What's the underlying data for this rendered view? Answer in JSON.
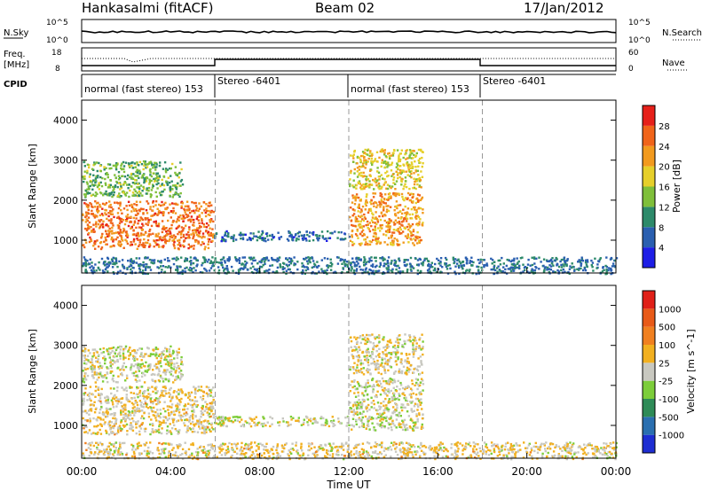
{
  "header": {
    "station": "Hankasalmi (fitACF)",
    "beam": "Beam 02",
    "date": "17/Jan/2012"
  },
  "noise_panel": {
    "label": "N.Sky",
    "tick_top": "10^5",
    "tick_bottom": "10^0",
    "right_tick_top": "10^5",
    "right_tick_bottom": "10^0",
    "right_label": "N.Search"
  },
  "freq_panel": {
    "label_line1": "Freq.",
    "label_line2": "[MHz]",
    "tick_top": "18",
    "tick_bottom": "8",
    "right_tick_top": "60",
    "right_tick_bottom": "0",
    "right_label": "Nave"
  },
  "cpid": {
    "label": "CPID",
    "segments": [
      {
        "start_hour": 0,
        "text": "normal (fast stereo) 153"
      },
      {
        "start_hour": 6,
        "text": "Stereo -6401"
      },
      {
        "start_hour": 12,
        "text": "normal (fast stereo) 153"
      },
      {
        "start_hour": 18,
        "text": "Stereo -6401"
      }
    ]
  },
  "x_axis": {
    "label": "Time UT",
    "ticks": [
      "00:00",
      "04:00",
      "08:00",
      "12:00",
      "16:00",
      "20:00",
      "00:00"
    ],
    "range_hours": [
      0,
      24
    ]
  },
  "colors": {
    "power_scale": [
      "#1e1ee6",
      "#2a5fb0",
      "#2d8a6a",
      "#7fbf3a",
      "#e6cf2a",
      "#f29a1e",
      "#f0641a",
      "#e6201a"
    ],
    "velocity_scale": [
      "#1e2ed2",
      "#2a6fb0",
      "#2e8b57",
      "#7ccd3a",
      "#c8c8c0",
      "#f2b020",
      "#f08020",
      "#e85a18",
      "#e02018"
    ]
  },
  "chart_data": [
    {
      "type": "heatmap",
      "name": "power",
      "ylabel": "Slant Range [km]",
      "yticks": [
        "1000",
        "2000",
        "3000",
        "4000"
      ],
      "ylim": [
        180,
        4500
      ],
      "colorbar": {
        "label": "Power [dB]",
        "ticks": [
          "4",
          "8",
          "12",
          "16",
          "20",
          "24",
          "28"
        ],
        "range": [
          0,
          32
        ]
      },
      "regions": [
        {
          "t0": 0.0,
          "t1": 5.9,
          "r0": 800,
          "r1": 2000,
          "value": 25
        },
        {
          "t0": 0.0,
          "t1": 4.5,
          "r0": 2100,
          "r1": 3000,
          "value": 13
        },
        {
          "t0": 5.9,
          "t1": 12.0,
          "r0": 1000,
          "r1": 1250,
          "value": 7
        },
        {
          "t0": 12.0,
          "t1": 15.3,
          "r0": 900,
          "r1": 2200,
          "value": 22
        },
        {
          "t0": 12.0,
          "t1": 15.3,
          "r0": 2300,
          "r1": 3300,
          "value": 18
        },
        {
          "t0": 0.0,
          "t1": 24.0,
          "r0": 180,
          "r1": 600,
          "value": 8
        }
      ]
    },
    {
      "type": "heatmap",
      "name": "velocity",
      "ylabel": "Slant Range [km]",
      "yticks": [
        "1000",
        "2000",
        "3000",
        "4000"
      ],
      "ylim": [
        180,
        4500
      ],
      "colorbar": {
        "label": "Velocity [m s^-1]",
        "ticks": [
          "1000",
          "500",
          "100",
          "25",
          "-25",
          "-100",
          "-500",
          "-1000"
        ],
        "range": [
          -1500,
          1500
        ]
      },
      "regions": [
        {
          "t0": 0.0,
          "t1": 5.9,
          "r0": 800,
          "r1": 2000,
          "value": 150
        },
        {
          "t0": 0.0,
          "t1": 4.5,
          "r0": 2100,
          "r1": 3000,
          "value": 0
        },
        {
          "t0": 5.9,
          "t1": 12.0,
          "r0": 1000,
          "r1": 1250,
          "value": 0
        },
        {
          "t0": 12.0,
          "t1": 15.3,
          "r0": 900,
          "r1": 2200,
          "value": 0
        },
        {
          "t0": 12.0,
          "t1": 15.3,
          "r0": 2300,
          "r1": 3300,
          "value": 120
        },
        {
          "t0": 0.0,
          "t1": 24.0,
          "r0": 180,
          "r1": 600,
          "value": 150
        }
      ]
    }
  ]
}
